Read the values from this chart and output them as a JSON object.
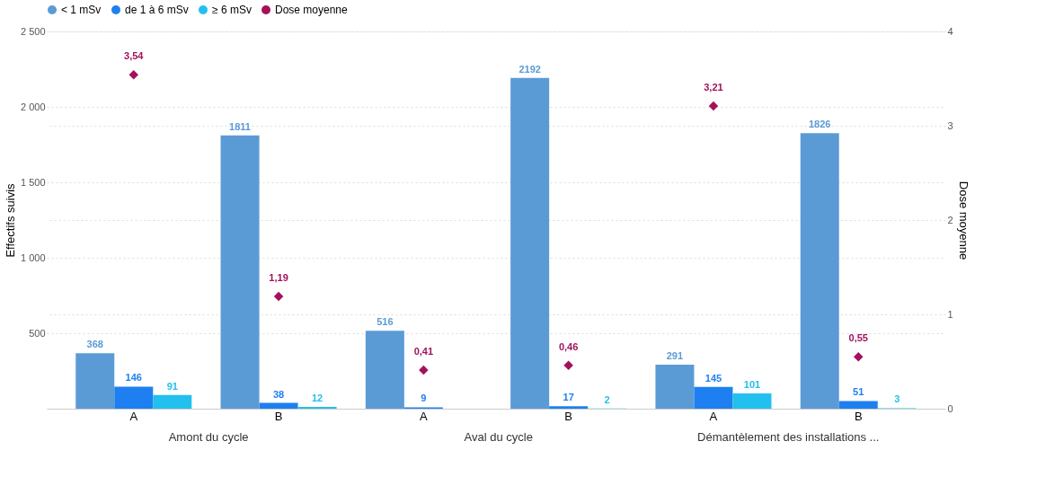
{
  "chart_data": {
    "type": "bar",
    "categories": [
      "A",
      "B",
      "A",
      "B",
      "A",
      "B"
    ],
    "annotations": [
      "Amont du cycle",
      "Aval du cycle",
      "Démantèlement des installations ..."
    ],
    "ylabel": "Effectifs suivis",
    "y2label": "Dose moyenne",
    "ylim": [
      0,
      2500
    ],
    "yticks": [
      {
        "value": 0,
        "label": null
      },
      500,
      {
        "value": 1000,
        "label": "1 000"
      },
      {
        "value": 1500,
        "label": "1 500"
      },
      {
        "value": 2000,
        "label": "2 000"
      },
      {
        "value": 2500,
        "label": "2 500"
      }
    ],
    "y2lim": [
      0,
      4
    ],
    "y2ticks": [
      0,
      1,
      2,
      3,
      4
    ],
    "grid": "y",
    "legend": "top",
    "data_labels": true,
    "series": [
      {
        "name": "< 1 mSv",
        "color": "#5b9bd5",
        "values": [
          368,
          1811,
          516,
          2192,
          291,
          1826
        ]
      },
      {
        "name": "de 1 à 6 mSv",
        "color": "#1e80f0",
        "values": [
          146,
          38,
          9,
          17,
          145,
          51
        ]
      },
      {
        "name": "≥ 6 mSv",
        "color": "#22c0ee",
        "values": [
          91,
          12,
          null,
          2,
          101,
          3
        ]
      },
      {
        "name": "Dose moyenne",
        "type": "scatter",
        "axis": "y2",
        "marker": "diamond",
        "color": "#a3115c",
        "values": [
          3.54,
          1.19,
          0.41,
          0.46,
          3.21,
          0.55
        ],
        "value_labels": [
          "3,54",
          "1,19",
          "0,41",
          "0,46",
          "3,21",
          "0,55"
        ]
      }
    ]
  }
}
